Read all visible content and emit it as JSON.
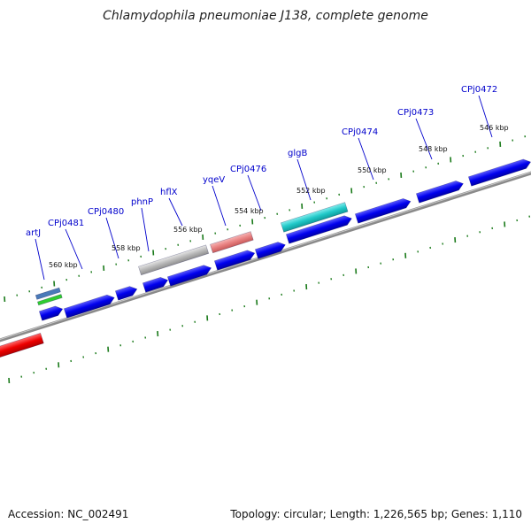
{
  "title": "Chlamydophila pneumoniae J138, complete genome",
  "footer": {
    "accession": "Accession: NC_002491",
    "summary": "Topology: circular; Length: 1,226,565 bp; Genes: 1,110"
  },
  "colors": {
    "gene_forward": "#0000ee",
    "backbone": "#8a8a8a",
    "tick": "#1a7a1a",
    "gene_label": "#0000cc",
    "red_feature": "#ee0000",
    "grey_feature": "#b8b8b8",
    "pink_feature": "#e88080",
    "cyan_feature": "#20c8c8",
    "blue_feature": "#4a7ab8",
    "green_feature": "#30cc30"
  },
  "scale_labels": [
    {
      "text": "560 kbp",
      "kbp": 560
    },
    {
      "text": "558 kbp",
      "kbp": 558
    },
    {
      "text": "556 kbp",
      "kbp": 556
    },
    {
      "text": "554 kbp",
      "kbp": 554
    },
    {
      "text": "552 kbp",
      "kbp": 552
    },
    {
      "text": "550 kbp",
      "kbp": 550
    },
    {
      "text": "548 kbp",
      "kbp": 548
    },
    {
      "text": "546 kbp",
      "kbp": 546
    }
  ],
  "gene_labels": [
    {
      "text": "artJ"
    },
    {
      "text": "CPj0481"
    },
    {
      "text": "CPj0480"
    },
    {
      "text": "phnP"
    },
    {
      "text": "hflX"
    },
    {
      "text": "yqeV"
    },
    {
      "text": "CPj0476"
    },
    {
      "text": "glgB"
    },
    {
      "text": "CPj0474"
    },
    {
      "text": "CPj0473"
    },
    {
      "text": "CPj0472"
    }
  ]
}
